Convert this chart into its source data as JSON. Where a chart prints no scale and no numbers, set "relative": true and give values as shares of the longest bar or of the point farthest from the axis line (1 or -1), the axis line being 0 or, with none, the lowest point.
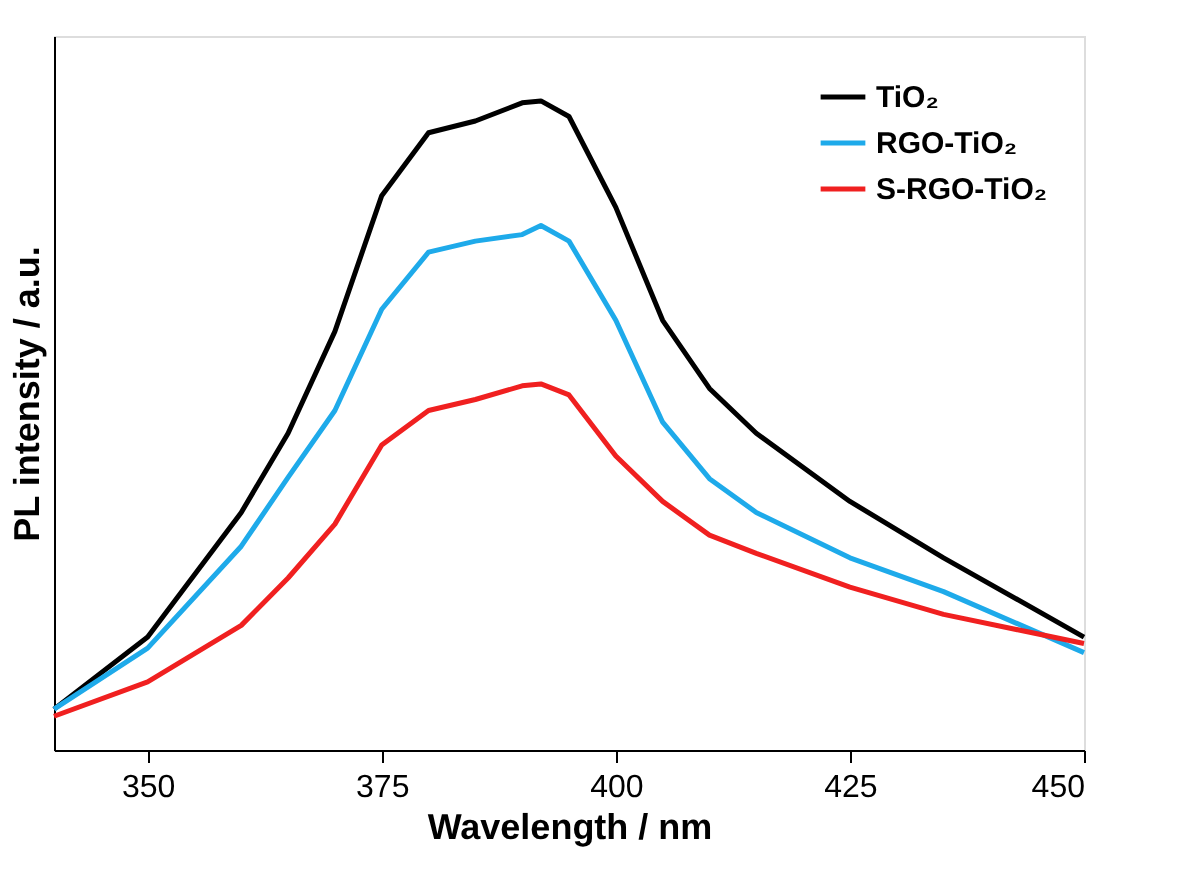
{
  "chart_data": {
    "type": "line",
    "relative": true,
    "xlabel": "Wavelength / nm",
    "ylabel": "PL intensity / a.u.",
    "x": [
      340,
      350,
      360,
      365,
      370,
      375,
      380,
      385,
      390,
      392,
      395,
      400,
      405,
      410,
      415,
      425,
      435,
      450
    ],
    "xlim": [
      340,
      450
    ],
    "xticks": [
      350,
      375,
      400,
      425,
      450
    ],
    "grid": false,
    "legend": "top right",
    "marker": "none",
    "line_style": "solid",
    "series": [
      {
        "name": "TiO₂",
        "color": "#000000",
        "values": [
          0.063,
          0.174,
          0.366,
          0.488,
          0.645,
          0.854,
          0.951,
          0.969,
          0.997,
          1.0,
          0.976,
          0.836,
          0.662,
          0.557,
          0.488,
          0.383,
          0.296,
          0.174
        ]
      },
      {
        "name": "RGO-TiO₂",
        "color": "#1eaaea",
        "values": [
          0.063,
          0.157,
          0.314,
          0.42,
          0.523,
          0.679,
          0.767,
          0.784,
          0.794,
          0.808,
          0.784,
          0.662,
          0.505,
          0.418,
          0.366,
          0.296,
          0.244,
          0.15
        ]
      },
      {
        "name": "S-RGO-TiO₂",
        "color": "#f02020",
        "values": [
          0.052,
          0.105,
          0.192,
          0.265,
          0.348,
          0.47,
          0.523,
          0.54,
          0.561,
          0.564,
          0.547,
          0.453,
          0.383,
          0.331,
          0.303,
          0.251,
          0.209,
          0.164
        ]
      }
    ]
  }
}
